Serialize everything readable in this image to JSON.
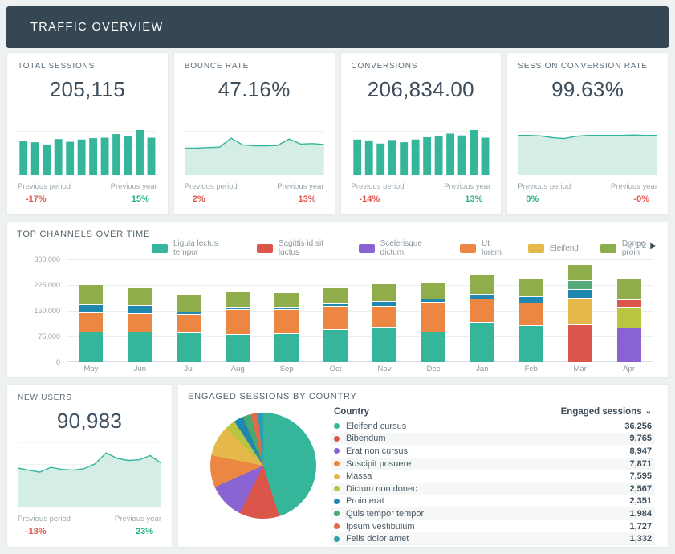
{
  "header": {
    "title": "TRAFFIC OVERVIEW"
  },
  "palette": {
    "teal": "#35b69a",
    "orange": "#ec8743",
    "blue": "#2088ae",
    "olive": "#8fae4b",
    "red": "#db554a",
    "gold": "#e5b84b",
    "seagreen": "#54a97b",
    "lime": "#b9c440",
    "purple": "#8a63d2",
    "green": "#4aa770",
    "orangered": "#e06b4c",
    "tealblue": "#2b9fb0",
    "positive": "#29b08d",
    "negative": "#e2574c",
    "header_bg": "#364753",
    "area_fill": "#d4ede5",
    "area_line": "#35b69a"
  },
  "kpi_cards": [
    {
      "label": "TOTAL SESSIONS",
      "value": "205,115",
      "spark": {
        "type": "bar",
        "values": [
          76,
          73,
          68,
          80,
          74,
          79,
          82,
          83,
          91,
          87,
          100,
          83
        ]
      },
      "prev_period_label": "Previous period",
      "prev_period_value": "-17%",
      "prev_period_trend": "neg",
      "prev_year_label": "Previous year",
      "prev_year_value": "15%",
      "prev_year_trend": "pos"
    },
    {
      "label": "BOUNCE RATE",
      "value": "47.16%",
      "spark": {
        "type": "area",
        "values": [
          60,
          60,
          61,
          62,
          82,
          67,
          65,
          65,
          66,
          80,
          69,
          70,
          68
        ]
      },
      "prev_period_label": "Previous period",
      "prev_period_value": "2%",
      "prev_period_trend": "neg",
      "prev_year_label": "Previous year",
      "prev_year_value": "13%",
      "prev_year_trend": "neg"
    },
    {
      "label": "CONVERSIONS",
      "value": "206,834.00",
      "spark": {
        "type": "bar",
        "values": [
          79,
          77,
          70,
          78,
          73,
          79,
          84,
          86,
          92,
          88,
          100,
          83
        ]
      },
      "prev_period_label": "Previous period",
      "prev_period_value": "-14%",
      "prev_period_trend": "neg",
      "prev_year_label": "Previous year",
      "prev_year_value": "13%",
      "prev_year_trend": "pos"
    },
    {
      "label": "SESSION CONVERSION RATE",
      "value": "99.63%",
      "spark": {
        "type": "area",
        "values": [
          88,
          88,
          87,
          83,
          81,
          86,
          88,
          88,
          88,
          88,
          89,
          88,
          88
        ]
      },
      "prev_period_label": "Previous period",
      "prev_period_value": "0%",
      "prev_period_trend": "pos",
      "prev_year_label": "Previous year",
      "prev_year_value": "-0%",
      "prev_year_trend": "neg"
    }
  ],
  "new_users": {
    "label": "NEW USERS",
    "value": "90,983",
    "prev_period_label": "Previous period",
    "prev_period_value": "-18%",
    "prev_period_trend": "neg",
    "prev_year_label": "Previous year",
    "prev_year_value": "23%",
    "prev_year_trend": "pos"
  },
  "engaged": {
    "title": "ENGAGED SESSIONS BY COUNTRY",
    "col_country": "Country",
    "col_sessions": "Engaged sessions",
    "sort_icon": "⌄",
    "rows": [
      {
        "name": "Eleifend cursus",
        "color": "teal",
        "value": "36,256"
      },
      {
        "name": "Bibendum",
        "color": "red",
        "value": "9,765"
      },
      {
        "name": "Erat non cursus",
        "color": "purple",
        "value": "8,947"
      },
      {
        "name": "Suscipit posuere",
        "color": "orange",
        "value": "7,871"
      },
      {
        "name": "Massa",
        "color": "gold",
        "value": "7,595"
      },
      {
        "name": "Dictum non donec",
        "color": "lime",
        "value": "2,567"
      },
      {
        "name": "Proin erat",
        "color": "blue",
        "value": "2,351"
      },
      {
        "name": "Quis tempor tempor",
        "color": "green",
        "value": "1,984"
      },
      {
        "name": "Ipsum vestibulum",
        "color": "orangered",
        "value": "1,727"
      },
      {
        "name": "Felis dolor amet",
        "color": "tealblue",
        "value": "1,332"
      }
    ]
  },
  "chart_data": [
    {
      "type": "bar",
      "stacked": true,
      "title": "TOP CHANNELS OVER TIME",
      "categories": [
        "May",
        "Jun",
        "Jul",
        "Aug",
        "Sep",
        "Oct",
        "Nov",
        "Dec",
        "Jan",
        "Feb",
        "Mar",
        "Apr"
      ],
      "ylim": [
        0,
        300000
      ],
      "yticks": [
        "300,000",
        "225,000",
        "150,000",
        "75,000",
        "0"
      ],
      "grid": true,
      "legend_position": "top",
      "legend_page": "1/2",
      "pager_prev_icon": "◀",
      "pager_next_icon": "▶",
      "legend": [
        {
          "label": "Ligula lectus tempor",
          "color": "teal"
        },
        {
          "label": "Sagittis id sit luctus",
          "color": "red"
        },
        {
          "label": "Scelerisque dictum",
          "color": "purple"
        },
        {
          "label": "Ut lorem",
          "color": "orange"
        },
        {
          "label": "Eleifend",
          "color": "gold"
        },
        {
          "label": "Donec proin",
          "color": "olive"
        }
      ],
      "bars": [
        [
          {
            "color": "teal",
            "value": 90000
          },
          {
            "color": "orange",
            "value": 57000
          },
          {
            "color": "blue",
            "value": 23000
          },
          {
            "color": "olive",
            "value": 56000
          }
        ],
        [
          {
            "color": "teal",
            "value": 89000
          },
          {
            "color": "orange",
            "value": 55000
          },
          {
            "color": "blue",
            "value": 23000
          },
          {
            "color": "olive",
            "value": 49000
          }
        ],
        [
          {
            "color": "teal",
            "value": 86000
          },
          {
            "color": "orange",
            "value": 54000
          },
          {
            "color": "blue",
            "value": 6000
          },
          {
            "color": "olive",
            "value": 49000
          }
        ],
        [
          {
            "color": "teal",
            "value": 81000
          },
          {
            "color": "orange",
            "value": 73000
          },
          {
            "color": "blue",
            "value": 8000
          },
          {
            "color": "olive",
            "value": 43000
          }
        ],
        [
          {
            "color": "teal",
            "value": 84000
          },
          {
            "color": "orange",
            "value": 70000
          },
          {
            "color": "blue",
            "value": 8000
          },
          {
            "color": "olive",
            "value": 41000
          }
        ],
        [
          {
            "color": "teal",
            "value": 96000
          },
          {
            "color": "orange",
            "value": 69000
          },
          {
            "color": "blue",
            "value": 7000
          },
          {
            "color": "olive",
            "value": 45000
          }
        ],
        [
          {
            "color": "teal",
            "value": 103000
          },
          {
            "color": "orange",
            "value": 62000
          },
          {
            "color": "blue",
            "value": 13000
          },
          {
            "color": "olive",
            "value": 50000
          }
        ],
        [
          {
            "color": "teal",
            "value": 90000
          },
          {
            "color": "orange",
            "value": 86000
          },
          {
            "color": "blue",
            "value": 10000
          },
          {
            "color": "olive",
            "value": 47000
          }
        ],
        [
          {
            "color": "teal",
            "value": 117000
          },
          {
            "color": "orange",
            "value": 69000
          },
          {
            "color": "blue",
            "value": 14000
          },
          {
            "color": "olive",
            "value": 54000
          }
        ],
        [
          {
            "color": "teal",
            "value": 107000
          },
          {
            "color": "orange",
            "value": 65000
          },
          {
            "color": "blue",
            "value": 19000
          },
          {
            "color": "olive",
            "value": 52000
          }
        ],
        [
          {
            "color": "red",
            "value": 110000
          },
          {
            "color": "gold",
            "value": 78000
          },
          {
            "color": "blue",
            "value": 25000
          },
          {
            "color": "seagreen",
            "value": 26000
          },
          {
            "color": "olive",
            "value": 44000
          }
        ],
        [
          {
            "color": "purple",
            "value": 100000
          },
          {
            "color": "lime",
            "value": 60000
          },
          {
            "color": "red",
            "value": 21000
          },
          {
            "color": "olive",
            "value": 58000
          }
        ]
      ]
    },
    {
      "type": "pie",
      "title": "ENGAGED SESSIONS BY COUNTRY",
      "labels": [
        "Eleifend cursus",
        "Bibendum",
        "Erat non cursus",
        "Suscipit posuere",
        "Massa",
        "Dictum non donec",
        "Proin erat",
        "Quis tempor tempor",
        "Ipsum vestibulum",
        "Felis dolor amet"
      ],
      "values": [
        36256,
        9765,
        8947,
        7871,
        7595,
        2567,
        2351,
        1984,
        1727,
        1332
      ],
      "colors": [
        "teal",
        "red",
        "purple",
        "orange",
        "gold",
        "lime",
        "blue",
        "green",
        "orangered",
        "tealblue"
      ]
    },
    {
      "type": "area",
      "title": "NEW USERS",
      "values": [
        57,
        54,
        51,
        58,
        55,
        54,
        56,
        63,
        79,
        71,
        68,
        69,
        75,
        64
      ]
    }
  ]
}
